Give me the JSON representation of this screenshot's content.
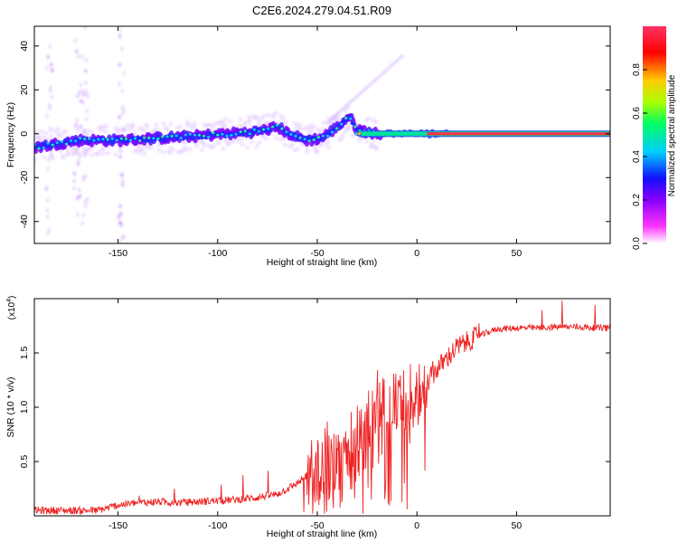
{
  "title": "C2E6.2024.279.04.51.R09",
  "colors": {
    "snr_line": "#ee2222",
    "axes": "#000000",
    "colormap": [
      "#ffffff",
      "#ff33ff",
      "#8800ff",
      "#1111ff",
      "#00ccff",
      "#00ff66",
      "#aaff00",
      "#ffcc00",
      "#ff0000",
      "#ff3366"
    ]
  },
  "chart_data": [
    {
      "type": "heatmap",
      "xlabel": "Height of straight line (km)",
      "ylabel": "Frequency (Hz)",
      "xlim": [
        -192,
        97
      ],
      "ylim": [
        -50,
        49
      ],
      "x_ticks": [
        -150,
        -100,
        -50,
        0,
        50
      ],
      "y_ticks": [
        -40,
        -20,
        0,
        20,
        40
      ],
      "colorbar": {
        "label": "Normalized spectral amplitude",
        "range": [
          0,
          1
        ],
        "ticks": [
          0.0,
          0.2,
          0.4,
          0.6,
          0.8
        ]
      },
      "ridge_frequency_vs_height": [
        {
          "x": -190,
          "y": -6
        },
        {
          "x": -170,
          "y": -3
        },
        {
          "x": -150,
          "y": -3
        },
        {
          "x": -130,
          "y": -2
        },
        {
          "x": -110,
          "y": -1
        },
        {
          "x": -95,
          "y": 0
        },
        {
          "x": -80,
          "y": 1
        },
        {
          "x": -70,
          "y": 3
        },
        {
          "x": -62,
          "y": -1
        },
        {
          "x": -55,
          "y": -3
        },
        {
          "x": -48,
          "y": -2
        },
        {
          "x": -40,
          "y": 3
        },
        {
          "x": -34,
          "y": 8
        },
        {
          "x": -30,
          "y": 2
        },
        {
          "x": -20,
          "y": 0
        },
        {
          "x": 0,
          "y": 0
        },
        {
          "x": 20,
          "y": 0
        },
        {
          "x": 95,
          "y": 0
        }
      ]
    },
    {
      "type": "line",
      "xlabel": "Height of straight line (km)",
      "ylabel": "SNR (10 * v/v)",
      "y_scale_label": "(x10",
      "y_scale_exponent": "4",
      "xlim": [
        -192,
        97
      ],
      "ylim": [
        0,
        2.0
      ],
      "x_ticks": [
        -150,
        -100,
        -50,
        0,
        50
      ],
      "y_ticks": [
        0.5,
        1.0,
        1.5
      ],
      "series": [
        {
          "values": [
            {
              "x": -192,
              "y": 0.05
            },
            {
              "x": -180,
              "y": 0.05
            },
            {
              "x": -160,
              "y": 0.05
            },
            {
              "x": -150,
              "y": 0.1
            },
            {
              "x": -140,
              "y": 0.12
            },
            {
              "x": -130,
              "y": 0.13
            },
            {
              "x": -120,
              "y": 0.12
            },
            {
              "x": -110,
              "y": 0.13
            },
            {
              "x": -100,
              "y": 0.14
            },
            {
              "x": -90,
              "y": 0.15
            },
            {
              "x": -80,
              "y": 0.17
            },
            {
              "x": -70,
              "y": 0.2
            },
            {
              "x": -60,
              "y": 0.3
            },
            {
              "x": -50,
              "y": 0.45
            },
            {
              "x": -40,
              "y": 0.55
            },
            {
              "x": -30,
              "y": 0.65
            },
            {
              "x": -20,
              "y": 0.9
            },
            {
              "x": -15,
              "y": 0.95
            },
            {
              "x": -10,
              "y": 1.05
            },
            {
              "x": 0,
              "y": 1.1
            },
            {
              "x": 10,
              "y": 1.35
            },
            {
              "x": 20,
              "y": 1.55
            },
            {
              "x": 30,
              "y": 1.65
            },
            {
              "x": 40,
              "y": 1.72
            },
            {
              "x": 50,
              "y": 1.73
            },
            {
              "x": 60,
              "y": 1.73
            },
            {
              "x": 70,
              "y": 1.74
            },
            {
              "x": 80,
              "y": 1.74
            },
            {
              "x": 90,
              "y": 1.73
            },
            {
              "x": 97,
              "y": 1.73
            }
          ]
        }
      ]
    }
  ]
}
